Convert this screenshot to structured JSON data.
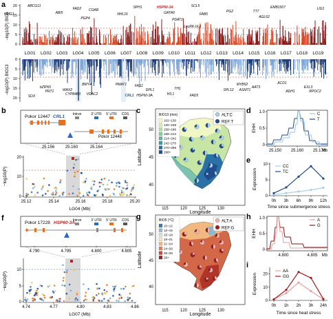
{
  "panel_a": {
    "label": "a",
    "top_ylabel": "−log10(P) BIO5",
    "bottom_ylabel": "−log10(P) BIO13",
    "top_yticks": [
      "20",
      "15",
      "10",
      "5",
      "0"
    ],
    "bottom_yticks": [
      "0",
      "5",
      "10",
      "15",
      "20"
    ],
    "lg_labels": [
      "LG01",
      "LG02",
      "LG03",
      "LG04",
      "LG05",
      "LG06",
      "LG07",
      "LG08",
      "LG09",
      "LG10",
      "LG11",
      "LG12",
      "LG13",
      "LG14",
      "LG15",
      "LG16",
      "LG17",
      "LG18",
      "LG19"
    ],
    "top_genes": [
      {
        "text": "ABCG11",
        "italic": true,
        "hl": false
      },
      {
        "text": "HMG1",
        "italic": true,
        "hl": false
      },
      {
        "text": "ABI5",
        "italic": true,
        "hl": false
      },
      {
        "text": "FAD2",
        "italic": true,
        "hl": false
      },
      {
        "text": "COAB",
        "italic": true,
        "hl": false
      },
      {
        "text": "PGP4",
        "italic": true,
        "hl": false
      },
      {
        "text": "NHL16",
        "italic": true,
        "hl": false
      },
      {
        "text": "SPH1",
        "italic": true,
        "hl": false
      },
      {
        "text": "HSP60-3A",
        "italic": true,
        "hl": true
      },
      {
        "text": "GATA9",
        "italic": true,
        "hl": false
      },
      {
        "text": "PDAT1",
        "italic": true,
        "hl": false
      },
      {
        "text": "LecRK-IX.1",
        "italic": true,
        "hl": false
      },
      {
        "text": "SCL5",
        "italic": true,
        "hl": false
      },
      {
        "text": "FAB5",
        "italic": true,
        "hl": false
      },
      {
        "text": "PG2",
        "italic": true,
        "hl": false
      },
      {
        "text": "TT7",
        "italic": true,
        "hl": false
      },
      {
        "text": "AGL62",
        "italic": true,
        "hl": false
      },
      {
        "text": "EMB1507",
        "italic": true,
        "hl": false
      },
      {
        "text": "LIG1",
        "italic": true,
        "hl": false
      }
    ],
    "bottom_genes": [
      {
        "text": "SOX",
        "hl": false
      },
      {
        "text": "bZIP65",
        "hl": false
      },
      {
        "text": "PRT1",
        "hl": false
      },
      {
        "text": "WAX2",
        "hl": false
      },
      {
        "text": "CYP84B3",
        "hl": false
      },
      {
        "text": "BMY4",
        "hl": false
      },
      {
        "text": "VDAC2",
        "hl": false
      },
      {
        "text": "PMAT1",
        "hl": false
      },
      {
        "text": "CRL1",
        "hl": true
      },
      {
        "text": "FAS1",
        "hl": false
      },
      {
        "text": "DPL1",
        "hl": false
      },
      {
        "text": "HSP60-3A",
        "hl": false
      },
      {
        "text": "H3.1",
        "hl": false
      },
      {
        "text": "TH1",
        "hl": false
      },
      {
        "text": "FAD5",
        "hl": false
      },
      {
        "text": "SPL12",
        "hl": false
      },
      {
        "text": "MYB52",
        "hl": false
      },
      {
        "text": "ASMT1",
        "hl": false
      },
      {
        "text": "AAT3",
        "hl": false
      },
      {
        "text": "ACD1",
        "hl": false
      },
      {
        "text": "ADH1",
        "hl": false
      },
      {
        "text": "EXL3",
        "hl": false
      },
      {
        "text": "RPOC2",
        "hl": false
      }
    ]
  },
  "panel_b": {
    "label": "b",
    "gene1": "Pokor 12447",
    "gene_name": "CRL1",
    "gene2": "Pokor 12448",
    "legend": [
      "Intron",
      "3' UTR",
      "5' UTR",
      "CDS"
    ],
    "zoom_ticks": [
      "25.156",
      "25.160",
      "25.164"
    ],
    "yticks": [
      "20",
      "10",
      "0"
    ],
    "ylabel": "−log10(P)",
    "xticks": [
      "25.12",
      "25.14",
      "25.16",
      "25.18",
      "25.20"
    ],
    "xlabel": "LG04 (Mb)"
  },
  "panel_c": {
    "label": "c",
    "legend_title": "BIO13 (mm)",
    "legend_items": [
      "102~130",
      "130~158",
      "158~186",
      "186~214",
      "214~242",
      "242~270",
      "270~298",
      "298+"
    ],
    "legend_colors": [
      "#f3f8c6",
      "#d9eeb0",
      "#b4e0a0",
      "#86cc98",
      "#5bb39c",
      "#3b96a8",
      "#2a71a7",
      "#1f4d8e"
    ],
    "allele_labels": [
      "ALT:C",
      "REF:T"
    ],
    "xticks": [
      "115",
      "120",
      "125",
      "130"
    ],
    "yticks": [
      "50",
      "45",
      "40"
    ],
    "xlabel": "Longitude",
    "ylabel": "Latitude"
  },
  "panel_d": {
    "label": "d",
    "ylabel": "EHH",
    "yticks": [
      "1.0",
      "0.5",
      "0"
    ],
    "xticks": [
      "25.150",
      "25.160",
      "25.170"
    ],
    "xunit": "Mb",
    "series": [
      {
        "name": "C",
        "color": "#9ec3e4"
      },
      {
        "name": "T",
        "color": "#224a86"
      }
    ]
  },
  "panel_e": {
    "label": "e",
    "ylabel": "Expression",
    "yticks": [
      "10",
      "5",
      "0"
    ],
    "xticks": [
      "0h",
      "3h",
      "6h",
      "9h",
      "12h"
    ],
    "xlabel": "Time since submergence stress",
    "chart_data": {
      "type": "line",
      "x": [
        "0h",
        "3h",
        "6h",
        "9h",
        "12h"
      ],
      "ylim": [
        0,
        10
      ],
      "ylabel": "Expression",
      "xlabel": "Time since submergence stress",
      "series": [
        {
          "name": "CC",
          "color": "#a9cfe8",
          "values": [
            0.4,
            0.8,
            1.3,
            1.8,
            2.5
          ]
        },
        {
          "name": "TC",
          "color": "#224a86",
          "values": [
            0.8,
            2.6,
            6.0,
            9.3,
            5.4
          ]
        }
      ]
    }
  },
  "panel_f": {
    "label": "f",
    "gene1": "Pokor 17228",
    "gene_name": "HSP60-3A",
    "legend": [
      "Intron",
      "3' UTR",
      "5' UTR",
      "CDS"
    ],
    "zoom_ticks": [
      "4.790",
      "4.795",
      "4.800",
      "4.805"
    ],
    "yticks": [
      "10",
      "5",
      "0"
    ],
    "ylabel": "−log10(P)",
    "xticks": [
      "4.74",
      "4.77",
      "4.80",
      "4.83",
      "4.86"
    ],
    "xlabel": "LG07 (Mb)"
  },
  "panel_g": {
    "label": "g",
    "legend_title": "BIO5 (°C)",
    "legend_items": [
      "10~12",
      "12~15",
      "15~18",
      "18~21",
      "21~24",
      "24~26",
      "26~28",
      "28+"
    ],
    "legend_colors": [
      "#3f78a8",
      "#8bbad0",
      "#d2e3d6",
      "#f6e2b8",
      "#f0b57f",
      "#e47d56",
      "#cc4a38",
      "#9c2420"
    ],
    "allele_labels": [
      "ALT:A",
      "REF:G"
    ],
    "xticks": [
      "115",
      "120",
      "125",
      "130"
    ],
    "yticks": [
      "50",
      "45",
      "40"
    ],
    "xlabel": "Longitude",
    "ylabel": "Latitude"
  },
  "panel_h": {
    "label": "h",
    "ylabel": "EHH",
    "yticks": [
      "1.0",
      "0.5",
      "0"
    ],
    "xticks": [
      "4.800",
      "4.805"
    ],
    "xunit": "Mb",
    "series": [
      {
        "name": "A",
        "color": "#e8a0a0"
      },
      {
        "name": "G",
        "color": "#8c1414"
      }
    ]
  },
  "panel_i": {
    "label": "i",
    "ylabel": "Expression",
    "yticks": [
      "20",
      "10",
      "0"
    ],
    "xticks": [
      "0h",
      "1h",
      "2h",
      "3h",
      "24h"
    ],
    "xlabel": "Time since heat stress",
    "chart_data": {
      "type": "line",
      "x": [
        "0h",
        "1h",
        "2h",
        "3h",
        "24h"
      ],
      "ylim": [
        0,
        24
      ],
      "ylabel": "Expression",
      "xlabel": "Time since heat stress",
      "series": [
        {
          "name": "AA",
          "color": "#e8a0a0",
          "values": [
            0.8,
            5.5,
            13.5,
            7.0,
            0.8
          ]
        },
        {
          "name": "GG",
          "color": "#a11c1c",
          "values": [
            0.8,
            8.0,
            21.5,
            17.0,
            1.0
          ]
        }
      ]
    }
  }
}
